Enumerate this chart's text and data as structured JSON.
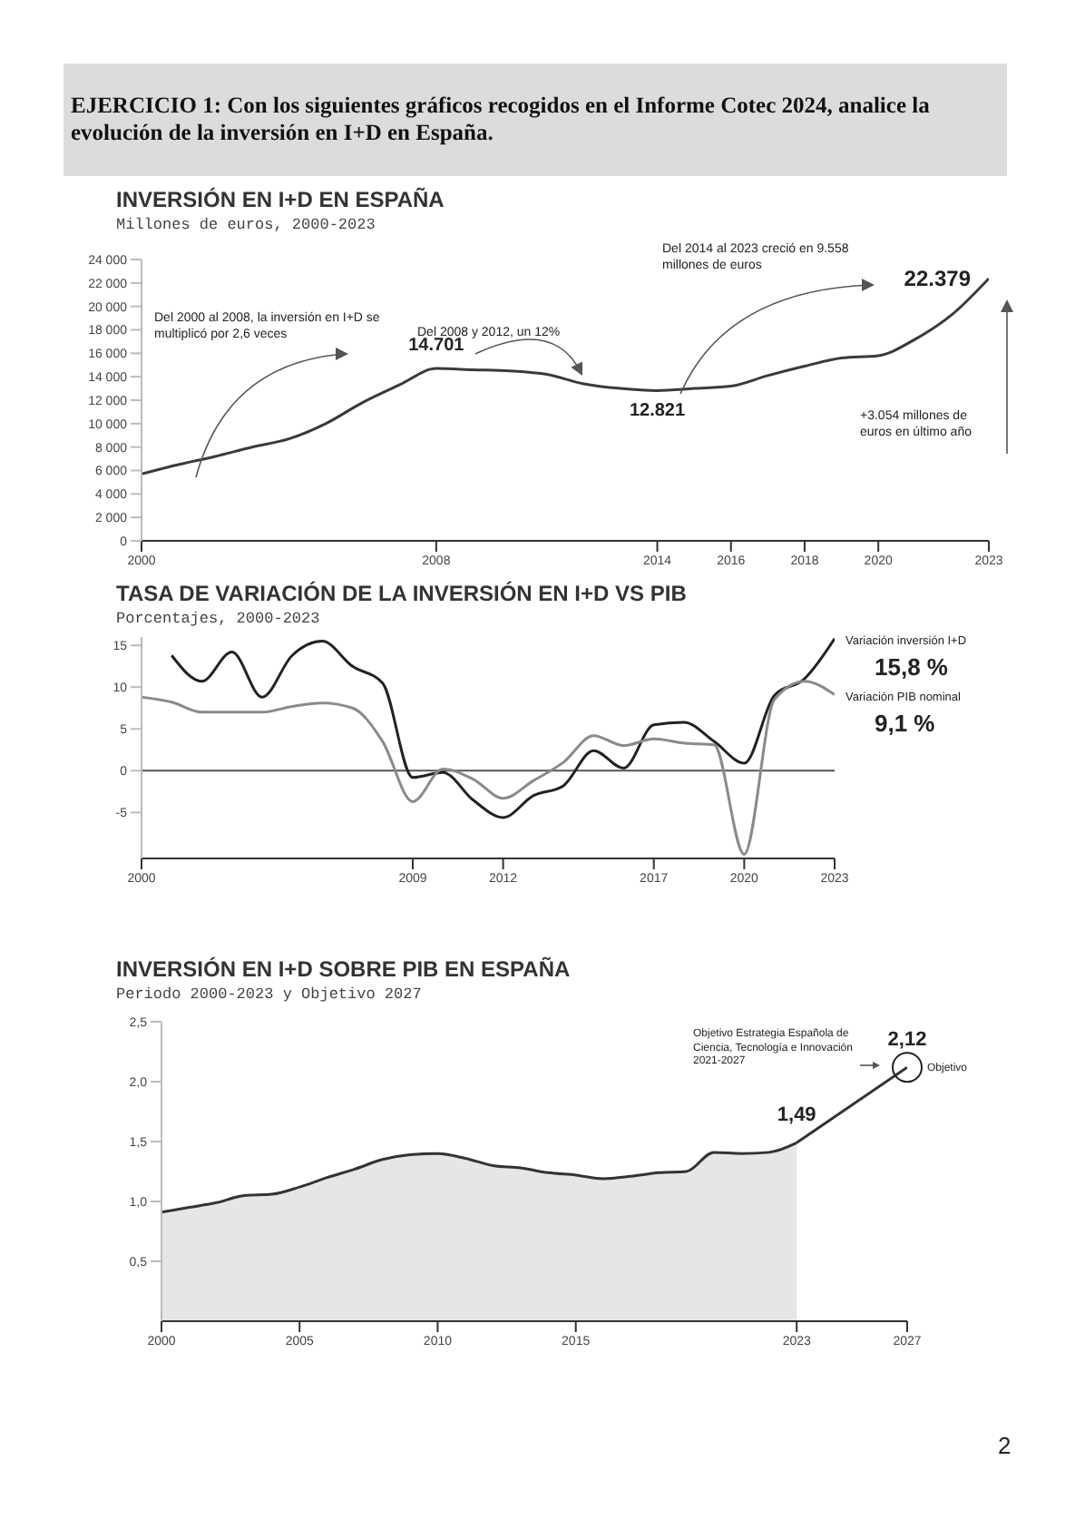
{
  "chart_data": [
    {
      "type": "line",
      "title": "INVERSIÓN EN I+D EN ESPAÑA",
      "subtitle": "Millones de euros, 2000-2023",
      "annotations": [
        "EJERCICIO 1: Con los siguientes gráficos recogidos en el Informe Cotec 2024, analice la evolución de la inversión en I+D en España.",
        "Del 2000 al 2008, la inversión en I+D se multiplicó por 2,6 veces",
        "Del 2008 y 2012, un 12%",
        "Del 2014 al 2023 creció en 9.558 millones de euros",
        "+3.054 millones de euros en último año"
      ],
      "x": [
        2000,
        2001,
        2002,
        2003,
        2004,
        2005,
        2006,
        2007,
        2008,
        2009,
        2010,
        2011,
        2012,
        2013,
        2014,
        2015,
        2016,
        2017,
        2018,
        2019,
        2020,
        2021,
        2022,
        2023
      ],
      "series": [
        {
          "color": "#3a3a3a",
          "values": [
            5700,
            6500,
            7200,
            8000,
            8700,
            10000,
            11800,
            13300,
            14701,
            14600,
            14500,
            14200,
            13400,
            13000,
            12821,
            13000,
            13200,
            14100,
            14900,
            15600,
            15800,
            17200,
            19300,
            22379
          ],
          "value_labels": [
            null,
            null,
            null,
            null,
            null,
            null,
            null,
            null,
            "14.701",
            null,
            null,
            null,
            null,
            null,
            "12.821",
            null,
            null,
            null,
            null,
            null,
            null,
            null,
            null,
            "22.379"
          ]
        }
      ],
      "xlim": [
        2000,
        2023
      ],
      "xticks": [
        2000,
        2008,
        2014,
        2016,
        2018,
        2020,
        2023
      ],
      "ylim": [
        0,
        24000
      ],
      "yticks": [
        {
          "value": 0,
          "label": "0"
        },
        {
          "value": 2000,
          "label": "2 000"
        },
        {
          "value": 4000,
          "label": "4 000"
        },
        {
          "value": 6000,
          "label": "6 000"
        },
        {
          "value": 8000,
          "label": "8 000"
        },
        {
          "value": 10000,
          "label": "10 000"
        },
        {
          "value": 12000,
          "label": "12 000"
        },
        {
          "value": 14000,
          "label": "14 000"
        },
        {
          "value": 16000,
          "label": "16 000"
        },
        {
          "value": 18000,
          "label": "18 000"
        },
        {
          "value": 20000,
          "label": "20 000"
        },
        {
          "value": 22000,
          "label": "22 000"
        },
        {
          "value": 24000,
          "label": "24 000"
        }
      ]
    },
    {
      "type": "line",
      "title": "TASA DE VARIACIÓN DE LA INVERSIÓN EN I+D VS PIB",
      "subtitle": "Porcentajes, 2000-2023",
      "x": [
        2000,
        2001,
        2002,
        2003,
        2004,
        2005,
        2006,
        2007,
        2008,
        2009,
        2010,
        2011,
        2012,
        2013,
        2014,
        2015,
        2016,
        2017,
        2018,
        2019,
        2020,
        2021,
        2022,
        2023
      ],
      "series": [
        {
          "name": "Variación inversión I+D",
          "color": "#222222",
          "values": [
            null,
            13.8,
            10.7,
            14.2,
            8.8,
            13.8,
            15.5,
            12.5,
            10.5,
            -0.8,
            -0.2,
            -3.5,
            -5.6,
            -3,
            -1.8,
            2.4,
            0.3,
            5.5,
            5.8,
            3.5,
            0.9,
            9,
            11,
            15.8
          ],
          "value_labels": [
            null,
            null,
            null,
            null,
            null,
            null,
            null,
            null,
            null,
            null,
            null,
            null,
            null,
            null,
            null,
            null,
            null,
            null,
            null,
            null,
            null,
            null,
            null,
            "15,8 %"
          ]
        },
        {
          "name": "Variación PIB nominal",
          "color": "#8a8a8a",
          "values": [
            8.8,
            8.2,
            7,
            7,
            7,
            7.7,
            8.1,
            7.5,
            3.5,
            -3.7,
            0.2,
            -1,
            -3.3,
            -1.2,
            1,
            4.2,
            3,
            3.8,
            3.3,
            3.1,
            -10,
            8.5,
            10.7,
            9.1
          ],
          "value_labels": [
            null,
            null,
            null,
            null,
            null,
            null,
            null,
            null,
            null,
            null,
            null,
            null,
            null,
            null,
            null,
            null,
            null,
            null,
            null,
            null,
            null,
            null,
            null,
            "9,1 %"
          ]
        }
      ],
      "xlim": [
        2000,
        2023
      ],
      "xticks": [
        2000,
        2009,
        2012,
        2017,
        2020,
        2023
      ],
      "ylim": [
        -10.5,
        16
      ],
      "yticks": [
        -5,
        0,
        5,
        10,
        15
      ],
      "ref_lines": [
        {
          "axis": "y",
          "value": 0,
          "color": "#555555"
        }
      ]
    },
    {
      "type": "area",
      "title": "INVERSIÓN EN I+D SOBRE PIB EN ESPAÑA",
      "subtitle": "Periodo 2000-2023 y Objetivo 2027",
      "annotations": [
        "Objetivo Estrategia Española de Ciencia, Tecnología e Innovación 2021-2027",
        {
          "text": "Objetivo",
          "x": 2027,
          "y": 2.12
        },
        "2"
      ],
      "series": [
        {
          "color": "#333333",
          "x": [
            2000,
            2001,
            2002,
            2003,
            2004,
            2005,
            2006,
            2007,
            2008,
            2009,
            2010,
            2011,
            2012,
            2013,
            2014,
            2015,
            2016,
            2017,
            2018,
            2019,
            2020,
            2021,
            2022,
            2023
          ],
          "values": [
            0.91,
            0.95,
            0.99,
            1.05,
            1.06,
            1.12,
            1.2,
            1.27,
            1.35,
            1.39,
            1.4,
            1.36,
            1.3,
            1.28,
            1.24,
            1.22,
            1.19,
            1.21,
            1.24,
            1.25,
            1.41,
            1.4,
            1.41,
            1.49
          ],
          "value_labels": [
            null,
            null,
            null,
            null,
            null,
            null,
            null,
            null,
            null,
            null,
            null,
            null,
            null,
            null,
            null,
            null,
            null,
            null,
            null,
            null,
            null,
            null,
            null,
            "1,49"
          ]
        },
        {
          "type": "line",
          "color": "#333333",
          "x": [
            2023,
            2027
          ],
          "values": [
            1.49,
            2.12
          ],
          "value_labels": [
            null,
            "2,12"
          ]
        }
      ],
      "xlim": [
        2000,
        2027
      ],
      "xticks": [
        2000,
        2005,
        2010,
        2015,
        2023,
        2027
      ],
      "ylim": [
        0,
        2.5
      ],
      "yticks": [
        {
          "value": 0.5,
          "label": "0,5"
        },
        {
          "value": 1,
          "label": "1,0"
        },
        {
          "value": 1.5,
          "label": "1,5"
        },
        {
          "value": 2,
          "label": "2,0"
        },
        {
          "value": 2.5,
          "label": "2,5"
        }
      ]
    }
  ]
}
